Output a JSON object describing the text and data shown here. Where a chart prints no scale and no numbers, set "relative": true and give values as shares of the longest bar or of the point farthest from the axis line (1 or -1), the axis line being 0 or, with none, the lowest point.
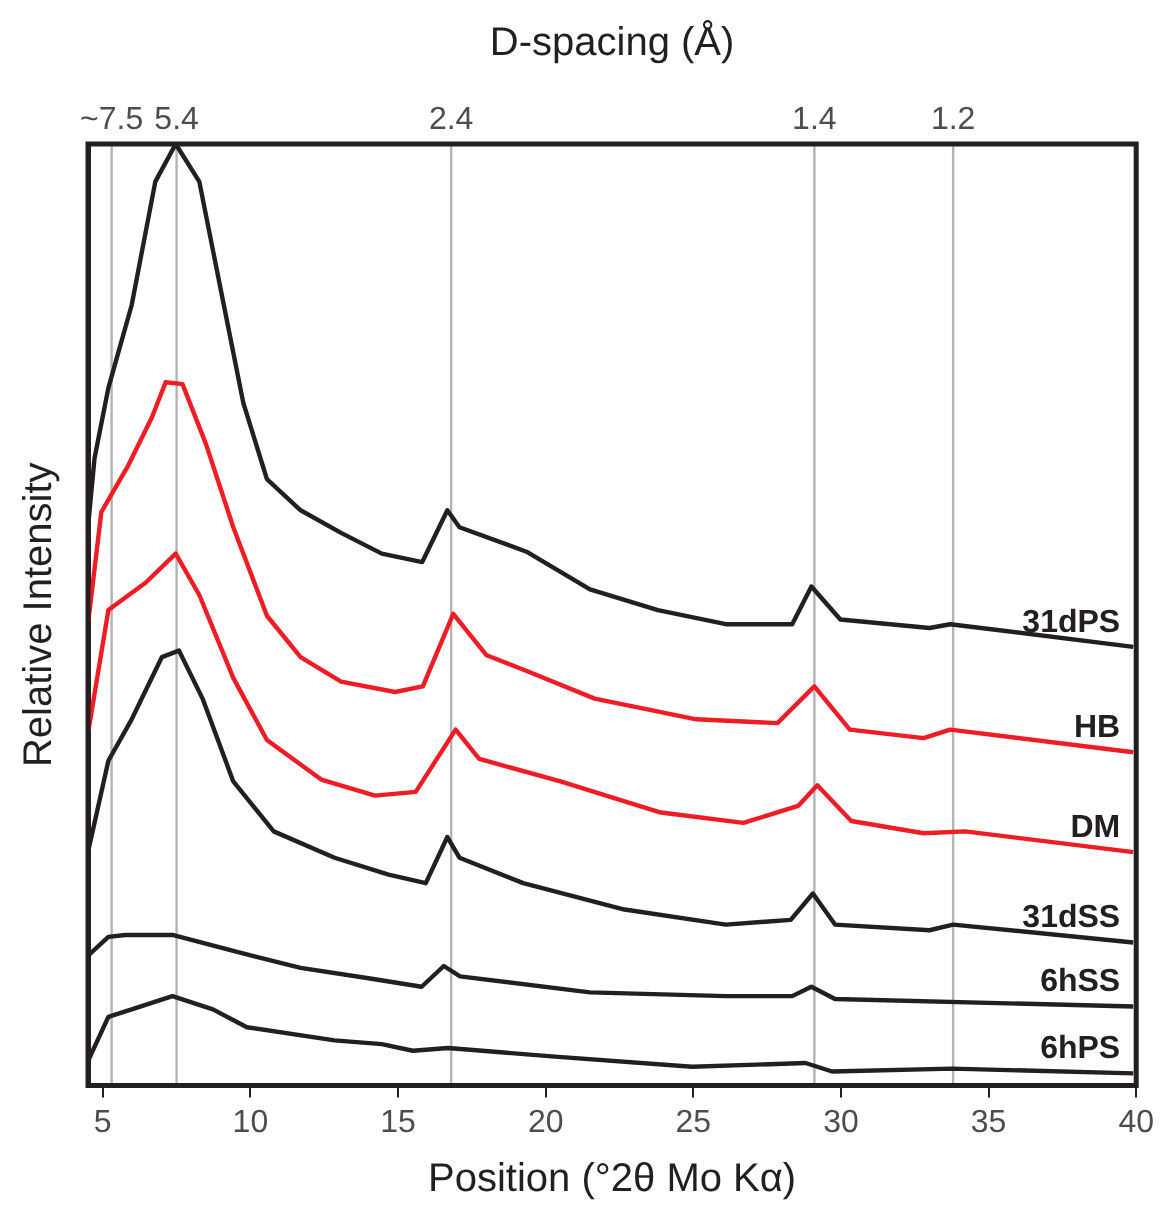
{
  "chart_data": {
    "type": "line",
    "relative": true,
    "xlabel": "Position (°2θ Mo Kα)",
    "ylabel": "Relative Intensity",
    "annotations": [
      "D-spacing (Å)",
      "~7.5",
      "5.4",
      "2.4",
      "1.4",
      "1.2"
    ],
    "xlim": [
      4.5,
      40
    ],
    "xticks": [
      5,
      10,
      15,
      20,
      25,
      30,
      35,
      40
    ],
    "ref_lines": [
      {
        "axis": "x",
        "value": 5.3,
        "color": "#b3b3b3"
      },
      {
        "axis": "x",
        "value": 7.5,
        "color": "#b3b3b3"
      },
      {
        "axis": "x",
        "value": 16.8,
        "color": "#b3b3b3"
      },
      {
        "axis": "x",
        "value": 29.1,
        "color": "#b3b3b3"
      },
      {
        "axis": "x",
        "value": 33.8,
        "color": "#b3b3b3"
      }
    ],
    "series": [
      {
        "name": "31dPS",
        "color": "#231f20",
        "x": [
          4.5,
          4.72,
          5.19,
          5.98,
          6.78,
          7.47,
          8.27,
          8.96,
          9.76,
          10.56,
          11.7,
          13.07,
          14.45,
          15.82,
          16.67,
          17.08,
          19.35,
          21.5,
          23.8,
          26.1,
          28.35,
          29.0,
          29.98,
          33,
          33.7,
          39.9
        ],
        "values": [
          0.593,
          0.666,
          0.741,
          0.829,
          0.96,
          1,
          0.96,
          0.851,
          0.725,
          0.644,
          0.611,
          0.587,
          0.565,
          0.556,
          0.611,
          0.593,
          0.567,
          0.527,
          0.505,
          0.49,
          0.49,
          0.53,
          0.495,
          0.486,
          0.49,
          0.466
        ]
      },
      {
        "name": "HB",
        "color": "#ee1c25",
        "x": [
          4.5,
          4.95,
          5.87,
          6.67,
          7.13,
          7.7,
          8.5,
          9.42,
          10.56,
          11.7,
          13.07,
          14.9,
          15.84,
          16.87,
          18,
          19.38,
          21.66,
          25.1,
          27.85,
          29.1,
          30.3,
          32.8,
          33.7,
          39.9
        ],
        "values": [
          0.49,
          0.609,
          0.659,
          0.71,
          0.747,
          0.745,
          0.681,
          0.593,
          0.499,
          0.455,
          0.429,
          0.418,
          0.424,
          0.501,
          0.457,
          0.44,
          0.411,
          0.389,
          0.385,
          0.424,
          0.378,
          0.369,
          0.378,
          0.354
        ]
      },
      {
        "name": "DM",
        "color": "#ee1c25",
        "x": [
          4.5,
          5.19,
          6.45,
          7.47,
          8.27,
          9.42,
          10.56,
          12.4,
          14.22,
          15.6,
          16.95,
          17.75,
          20.5,
          23.9,
          26.7,
          28.55,
          29.2,
          30.35,
          32.8,
          34.2,
          39.9
        ],
        "values": [
          0.374,
          0.505,
          0.534,
          0.565,
          0.521,
          0.433,
          0.367,
          0.325,
          0.308,
          0.312,
          0.378,
          0.347,
          0.323,
          0.29,
          0.279,
          0.297,
          0.319,
          0.281,
          0.268,
          0.27,
          0.248
        ]
      },
      {
        "name": "31dSS",
        "color": "#231f20",
        "x": [
          4.5,
          5.19,
          5.98,
          7.0,
          7.58,
          8.38,
          9.42,
          10.79,
          12.85,
          14.68,
          15.94,
          16.67,
          17.08,
          19.24,
          22.67,
          26.1,
          28.3,
          29.05,
          29.8,
          33,
          33.8,
          39.9
        ],
        "values": [
          0.248,
          0.345,
          0.389,
          0.455,
          0.462,
          0.411,
          0.323,
          0.27,
          0.242,
          0.224,
          0.215,
          0.264,
          0.242,
          0.215,
          0.187,
          0.171,
          0.176,
          0.204,
          0.171,
          0.165,
          0.171,
          0.152
        ]
      },
      {
        "name": "6hSS",
        "color": "#231f20",
        "x": [
          4.5,
          5.19,
          5.76,
          7.36,
          9.42,
          11.7,
          14,
          15.8,
          16.55,
          17.1,
          21.5,
          26.1,
          28.35,
          29.0,
          29.8,
          39.9
        ],
        "values": [
          0.138,
          0.158,
          0.16,
          0.16,
          0.143,
          0.125,
          0.114,
          0.105,
          0.127,
          0.116,
          0.099,
          0.095,
          0.095,
          0.105,
          0.092,
          0.084
        ]
      },
      {
        "name": "6hPS",
        "color": "#231f20",
        "x": [
          4.5,
          5.19,
          5.98,
          7.36,
          8.73,
          9.88,
          12.85,
          14.45,
          15.5,
          16.7,
          20.2,
          24.96,
          28.8,
          29.7,
          33.76,
          39.9
        ],
        "values": [
          0.026,
          0.073,
          0.081,
          0.095,
          0.081,
          0.062,
          0.048,
          0.044,
          0.037,
          0.04,
          0.031,
          0.02,
          0.024,
          0.015,
          0.018,
          0.013
        ]
      }
    ]
  }
}
